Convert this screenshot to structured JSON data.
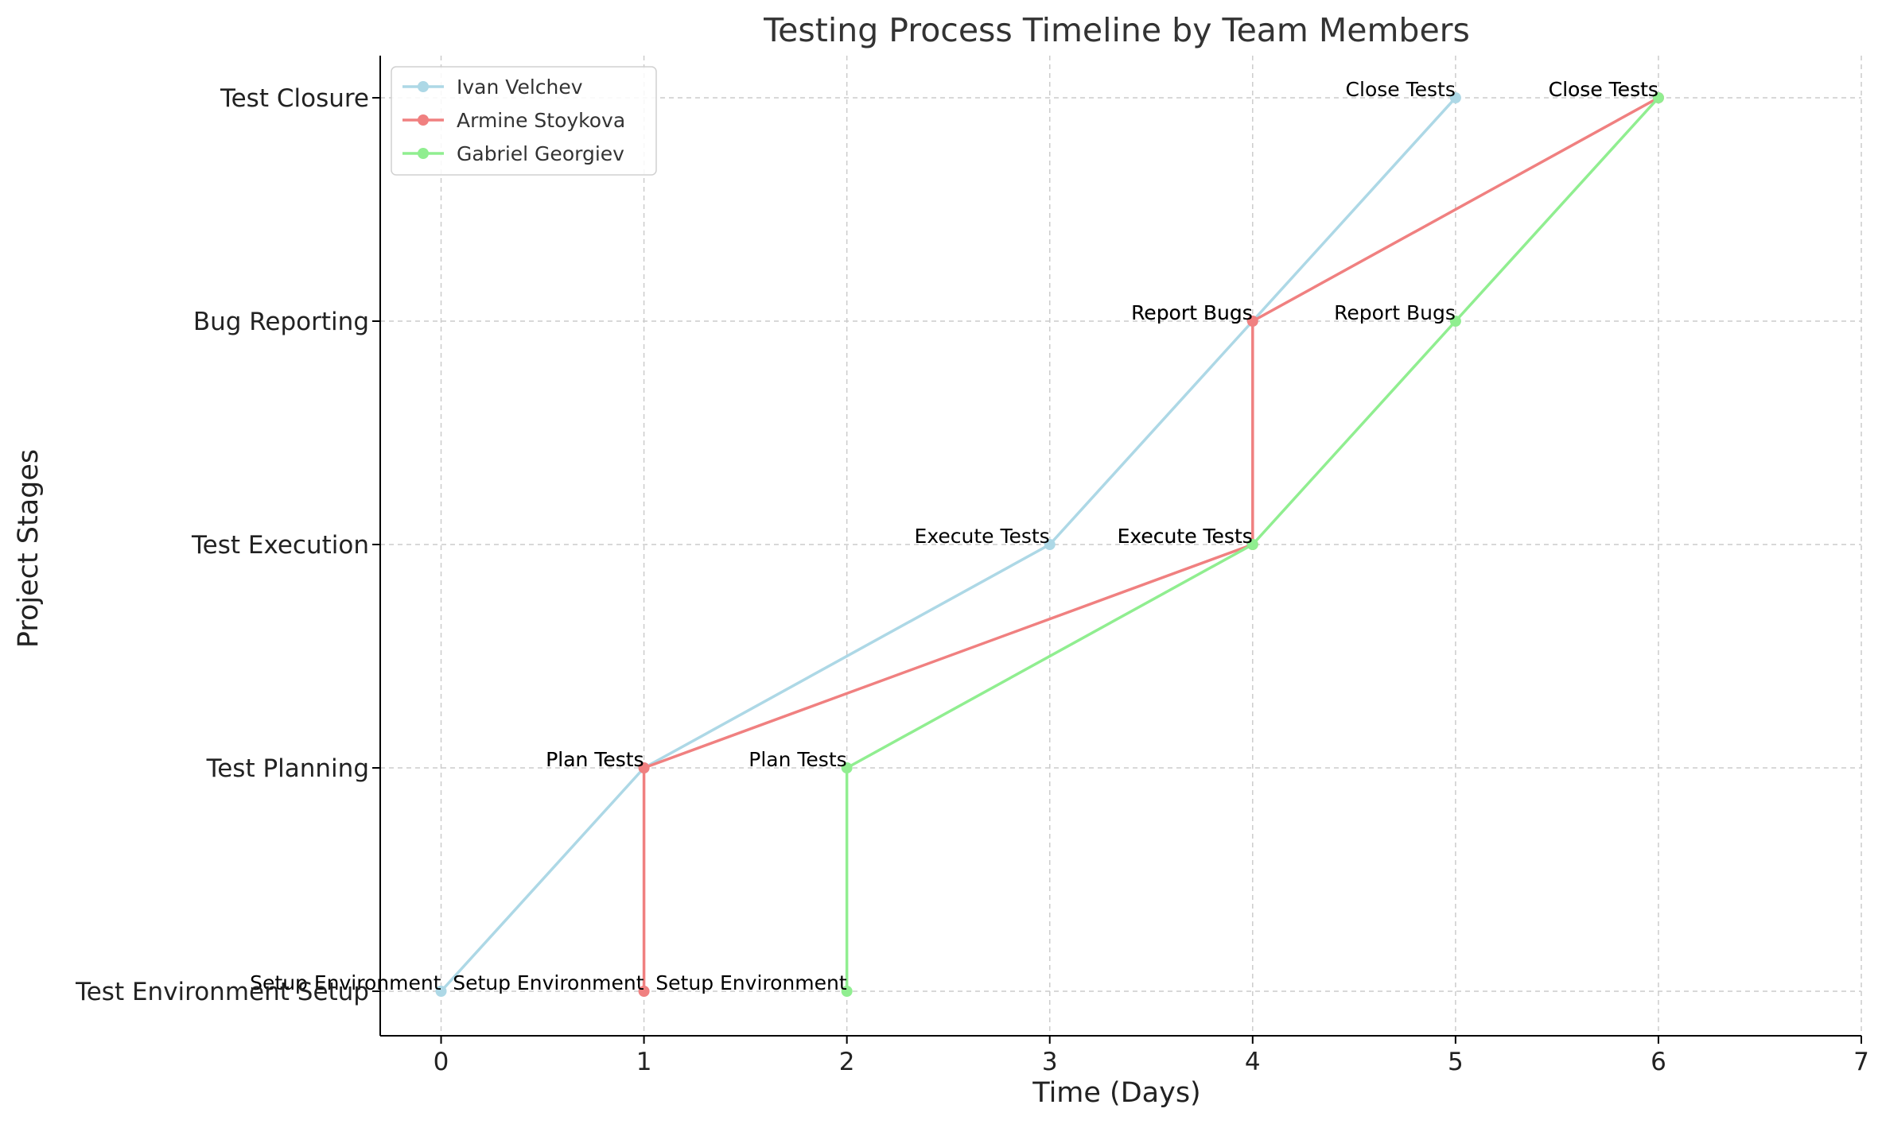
{
  "chart_data": {
    "type": "line",
    "title": "Testing Process Timeline by Team Members",
    "xlabel": "Time (Days)",
    "ylabel": "Project Stages",
    "xlim": [
      -0.3,
      7
    ],
    "x_ticks": [
      0,
      1,
      2,
      3,
      4,
      5,
      6,
      7
    ],
    "stages": [
      "Test Environment Setup",
      "Test Planning",
      "Test Execution",
      "Bug Reporting",
      "Test Closure"
    ],
    "grid": true,
    "legend_position": "top-left",
    "series": [
      {
        "name": "Ivan Velchev",
        "color": "#add8e6",
        "x": [
          0,
          1,
          3,
          4,
          5
        ],
        "stage_index": [
          0,
          1,
          2,
          3,
          4
        ],
        "labels": [
          "Setup Environment",
          "Plan Tests",
          "Execute Tests",
          "Report Bugs",
          "Close Tests"
        ]
      },
      {
        "name": "Armine Stoykova",
        "color": "#f08080",
        "x": [
          1,
          1,
          4,
          4,
          6
        ],
        "stage_index": [
          0,
          1,
          2,
          3,
          4
        ],
        "labels": [
          "Setup Environment",
          "Plan Tests",
          "Execute Tests",
          "Report Bugs",
          "Close Tests"
        ]
      },
      {
        "name": "Gabriel Georgiev",
        "color": "#90ee90",
        "x": [
          2,
          2,
          4,
          5,
          6
        ],
        "stage_index": [
          0,
          1,
          2,
          3,
          4
        ],
        "labels": [
          "Setup Environment",
          "Plan Tests",
          "Execute Tests",
          "Report Bugs",
          "Close Tests"
        ]
      }
    ]
  }
}
